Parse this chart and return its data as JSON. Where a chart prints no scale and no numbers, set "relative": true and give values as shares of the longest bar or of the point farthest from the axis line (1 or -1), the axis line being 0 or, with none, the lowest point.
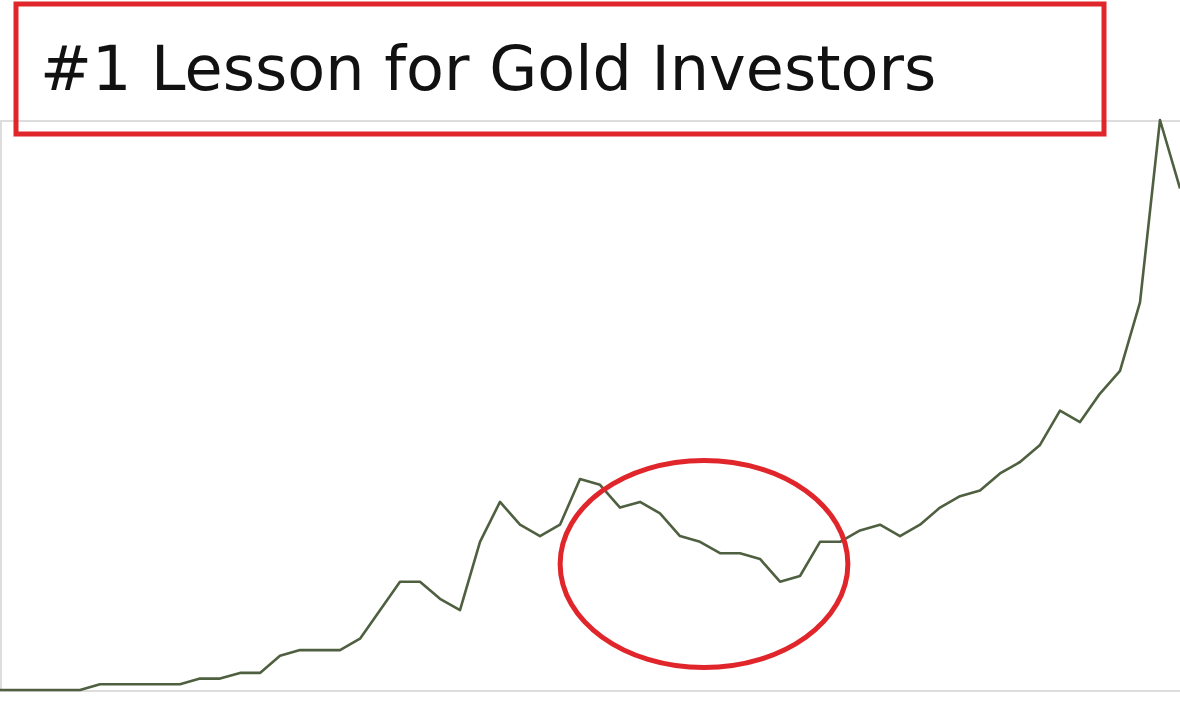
{
  "chart_data": {
    "type": "line",
    "title": "#1 Lesson for Gold Investors",
    "relative": true,
    "categories": [
      null,
      null,
      null,
      null,
      null,
      null,
      null,
      null,
      null,
      null,
      null,
      null,
      null,
      null,
      null,
      null,
      null,
      null,
      null,
      null,
      null,
      null,
      null,
      null,
      null,
      null,
      null,
      null,
      null,
      null,
      null,
      null,
      null,
      null,
      null,
      null,
      null,
      null,
      null,
      null,
      null,
      null,
      null,
      null,
      null,
      null,
      null,
      null,
      null,
      null,
      null,
      null,
      null,
      null,
      null,
      null,
      null,
      null,
      null,
      null
    ],
    "color": "#4f6040",
    "values": [
      0,
      0,
      0,
      0,
      0,
      0.01,
      0.01,
      0.01,
      0.01,
      0.01,
      0.02,
      0.02,
      0.03,
      0.03,
      0.06,
      0.07,
      0.07,
      0.07,
      0.09,
      0.14,
      0.19,
      0.19,
      0.16,
      0.14,
      0.26,
      0.33,
      0.29,
      0.27,
      0.29,
      0.37,
      0.36,
      0.32,
      0.33,
      0.31,
      0.27,
      0.26,
      0.24,
      0.24,
      0.23,
      0.19,
      0.2,
      0.26,
      0.26,
      0.28,
      0.29,
      0.27,
      0.29,
      0.32,
      0.34,
      0.35,
      0.38,
      0.4,
      0.43,
      0.49,
      0.47,
      0.52,
      0.56,
      0.68,
      1,
      0.88
    ]
  }
}
